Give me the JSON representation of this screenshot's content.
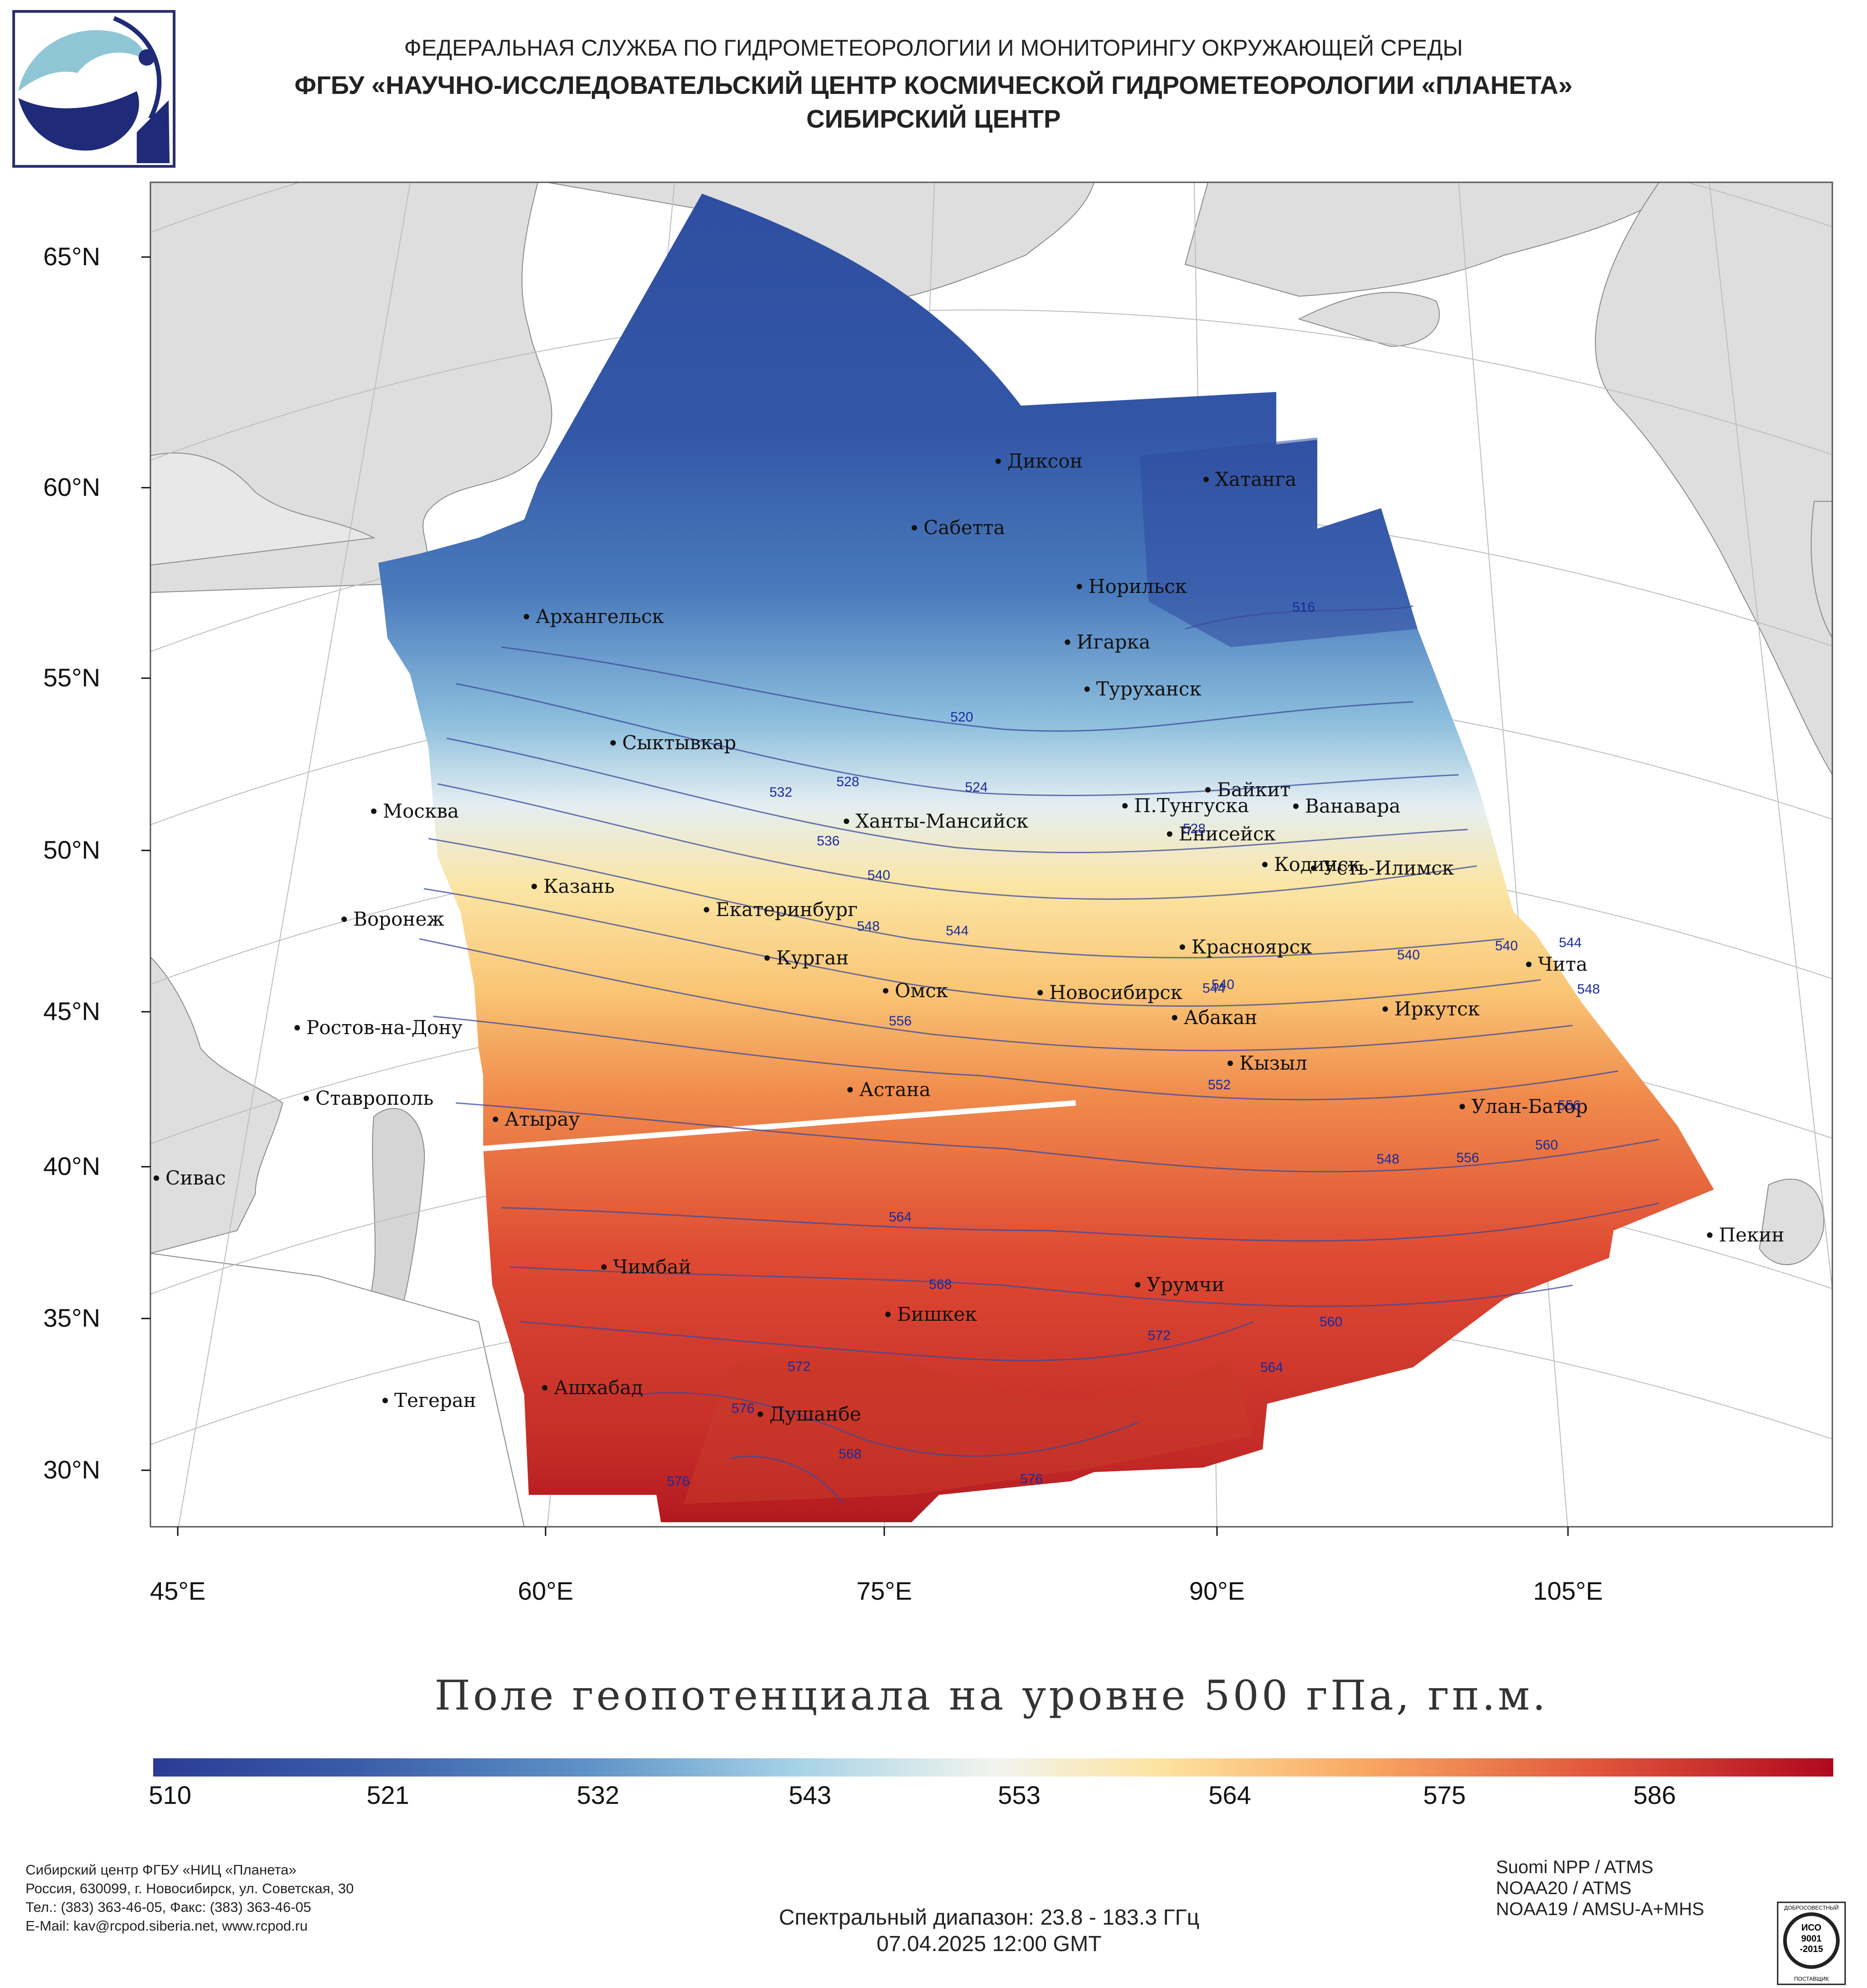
{
  "header": {
    "agency": "ФЕДЕРАЛЬНАЯ СЛУЖБА ПО ГИДРОМЕТЕОРОЛОГИИ И МОНИТОРИНГУ ОКРУЖАЮЩЕЙ СРЕДЫ",
    "institute": "ФГБУ «НАУЧНО-ИССЛЕДОВАТЕЛЬСКИЙ ЦЕНТР КОСМИЧЕСКОЙ ГИДРОМЕТЕОРОЛОГИИ «ПЛАНЕТА»",
    "center": "СИБИРСКИЙ ЦЕНТР"
  },
  "logos": {
    "main": "planeta-logo",
    "certification": "iso-certification-seal"
  },
  "map": {
    "title": "Поле геопотенциала на уровне 500 гПа, гп.м.",
    "latitude_labels": [
      "65°N",
      "60°N",
      "55°N",
      "50°N",
      "45°N",
      "40°N",
      "35°N",
      "30°N"
    ],
    "longitude_labels": [
      "45°E",
      "60°E",
      "75°E",
      "90°E",
      "105°E"
    ],
    "cities": [
      {
        "name": "Диксон"
      },
      {
        "name": "Хатанга"
      },
      {
        "name": "Сабетта"
      },
      {
        "name": "Норильск"
      },
      {
        "name": "Архангельск"
      },
      {
        "name": "Игарка"
      },
      {
        "name": "Туруханск"
      },
      {
        "name": "Сыктывкар"
      },
      {
        "name": "Байкит"
      },
      {
        "name": "Москва"
      },
      {
        "name": "Ханты-Мансийск"
      },
      {
        "name": "П.Тунгуска"
      },
      {
        "name": "Ванавара"
      },
      {
        "name": "Енисейск"
      },
      {
        "name": "Кодинск"
      },
      {
        "name": "Усть-Илимск"
      },
      {
        "name": "Казань"
      },
      {
        "name": "Екатеринбург"
      },
      {
        "name": "Воронеж"
      },
      {
        "name": "Красноярск"
      },
      {
        "name": "Курган"
      },
      {
        "name": "Чита"
      },
      {
        "name": "Омск"
      },
      {
        "name": "Новосибирск"
      },
      {
        "name": "Иркутск"
      },
      {
        "name": "Абакан"
      },
      {
        "name": "Ростов-на-Дону"
      },
      {
        "name": "Кызыл"
      },
      {
        "name": "Ставрополь"
      },
      {
        "name": "Астана"
      },
      {
        "name": "Улан-Батор"
      },
      {
        "name": "Атырау"
      },
      {
        "name": "Сивас"
      },
      {
        "name": "Пекин"
      },
      {
        "name": "Чимбай"
      },
      {
        "name": "Урумчи"
      },
      {
        "name": "Бишкек"
      },
      {
        "name": "Ашхабад"
      },
      {
        "name": "Душанбе"
      },
      {
        "name": "Тегеран"
      }
    ],
    "contour_labels": [
      "516",
      "520",
      "524",
      "528",
      "532",
      "536",
      "540",
      "544",
      "548",
      "552",
      "556",
      "560",
      "564",
      "568",
      "572",
      "576"
    ],
    "colors": {
      "low": "#2b3b95",
      "mid": "#f2f2f0",
      "high": "#b3101e",
      "land": "#dedede",
      "ocean": "#ffffff"
    }
  },
  "colorbar": {
    "ticks": [
      "510",
      "521",
      "532",
      "543",
      "553",
      "564",
      "575",
      "586"
    ],
    "min": 510,
    "max": 595
  },
  "footer": {
    "org_lines": [
      "Сибирский центр ФГБУ «НИЦ «Планета»",
      "Россия, 630099, г. Новосибирск, ул. Советская, 30",
      "Тел.: (383) 363-46-05, Факс: (383) 363-46-05",
      "E-Mail: kav@rcpod.siberia.net, www.rcpod.ru"
    ],
    "satellites": [
      "Suomi NPP / ATMS",
      "NOAA20 / ATMS",
      "NOAA19 / AMSU-A+MHS"
    ],
    "spectral": "Спектральный диапазон: 23.8 - 183.3 ГГц",
    "datetime": "07.04.2025 12:00 GMT",
    "iso_text": [
      "ДОБРОСОВЕСТНЫЙ",
      "ИСО",
      "9001",
      "-2015",
      "ПОСТАВЩИК"
    ]
  }
}
